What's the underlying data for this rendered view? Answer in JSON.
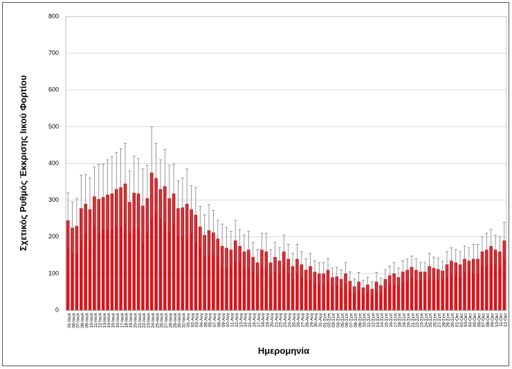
{
  "chart_data": {
    "type": "bar",
    "ylabel": "Σχετικός Ρυθμός Έκκρισης Ιικού Φορτίου",
    "xlabel": "Ημερομηνία",
    "color": "#d9141b",
    "error_color": "#7f7f7f",
    "grid": true,
    "ylim": [
      0,
      800
    ],
    "yticks": [
      0,
      100,
      200,
      300,
      400,
      500,
      600,
      700,
      800
    ],
    "categories": [
      "01-Ιουλ",
      "06-Ιουλ",
      "07-Ιουλ",
      "08-Ιουλ",
      "09-Ιουλ",
      "10-Ιουλ",
      "11-Ιουλ",
      "12-Ιουλ",
      "13-Ιουλ",
      "14-Ιουλ",
      "15-Ιουλ",
      "16-Ιουλ",
      "17-Ιουλ",
      "18-Ιουλ",
      "19-Ιουλ",
      "20-Ιουλ",
      "21-Ιουλ",
      "22-Ιουλ",
      "23-Ιουλ",
      "24-Ιουλ",
      "25-Ιουλ",
      "26-Ιουλ",
      "27-Ιουλ",
      "28-Ιουλ",
      "29-Ιουλ",
      "30-Ιουλ",
      "31-Ιουλ",
      "01-Αυγ",
      "02-Αυγ",
      "03-Αυγ",
      "04-Αυγ",
      "05-Αυγ",
      "06-Αυγ",
      "07-Αυγ",
      "08-Αυγ",
      "09-Αυγ",
      "10-Αυγ",
      "11-Αυγ",
      "12-Αυγ",
      "13-Αυγ",
      "14-Αυγ",
      "15-Αυγ",
      "16-Αυγ",
      "17-Αυγ",
      "18-Αυγ",
      "19-Αυγ",
      "20-Αυγ",
      "21-Αυγ",
      "22-Αυγ",
      "23-Αυγ",
      "24-Αυγ",
      "25-Αυγ",
      "26-Αυγ",
      "27-Αυγ",
      "28-Αυγ",
      "29-Αυγ",
      "30-Αυγ",
      "31-Αυγ",
      "01-Σεπ",
      "02-Σεπ",
      "03-Σεπ",
      "04-Σεπ",
      "05-Σεπ",
      "06-Σεπ",
      "07-Σεπ",
      "08-Σεπ",
      "09-Σεπ",
      "10-Σεπ",
      "11-Σεπ",
      "12-Σεπ",
      "13-Σεπ",
      "14-Σεπ",
      "15-Σεπ",
      "16-Σεπ",
      "17-Σεπ",
      "18-Σεπ",
      "19-Σεπ",
      "20-Σεπ",
      "21-Σεπ",
      "22-Σεπ",
      "23-Σεπ",
      "24-Σεπ",
      "25-Σεπ",
      "26-Σεπ",
      "27-Σεπ",
      "28-Σεπ",
      "29-Σεπ",
      "30-Σεπ",
      "01-Οκτ",
      "02-Οκτ",
      "03-Οκτ",
      "04-Οκτ",
      "05-Οκτ",
      "06-Οκτ",
      "07-Οκτ",
      "08-Οκτ",
      "09-Οκτ",
      "10-Οκτ",
      "11-Οκτ",
      "12-Οκτ"
    ],
    "values": [
      245,
      225,
      230,
      278,
      290,
      275,
      310,
      303,
      308,
      315,
      318,
      330,
      335,
      345,
      295,
      320,
      318,
      285,
      305,
      375,
      360,
      330,
      338,
      305,
      318,
      278,
      280,
      290,
      275,
      260,
      228,
      205,
      218,
      212,
      195,
      175,
      170,
      165,
      190,
      175,
      160,
      165,
      145,
      130,
      165,
      160,
      130,
      145,
      135,
      160,
      140,
      120,
      140,
      125,
      110,
      120,
      105,
      100,
      100,
      110,
      90,
      92,
      85,
      100,
      80,
      65,
      78,
      62,
      70,
      58,
      78,
      68,
      85,
      95,
      100,
      90,
      105,
      110,
      118,
      110,
      105,
      105,
      120,
      115,
      112,
      108,
      125,
      135,
      130,
      125,
      140,
      135,
      140,
      140,
      160,
      165,
      175,
      165,
      160,
      190
    ],
    "errors": [
      75,
      70,
      75,
      90,
      80,
      85,
      80,
      95,
      90,
      95,
      100,
      100,
      105,
      110,
      85,
      100,
      95,
      100,
      90,
      125,
      95,
      80,
      100,
      90,
      80,
      75,
      80,
      95,
      65,
      75,
      55,
      55,
      70,
      60,
      50,
      60,
      55,
      50,
      55,
      45,
      45,
      50,
      40,
      35,
      45,
      50,
      35,
      40,
      35,
      45,
      40,
      35,
      40,
      35,
      30,
      35,
      30,
      30,
      30,
      30,
      25,
      25,
      25,
      30,
      25,
      20,
      25,
      20,
      20,
      20,
      25,
      20,
      25,
      25,
      30,
      25,
      30,
      30,
      30,
      30,
      25,
      25,
      35,
      30,
      30,
      25,
      35,
      35,
      35,
      35,
      35,
      35,
      40,
      40,
      40,
      45,
      45,
      40,
      40,
      50
    ]
  }
}
